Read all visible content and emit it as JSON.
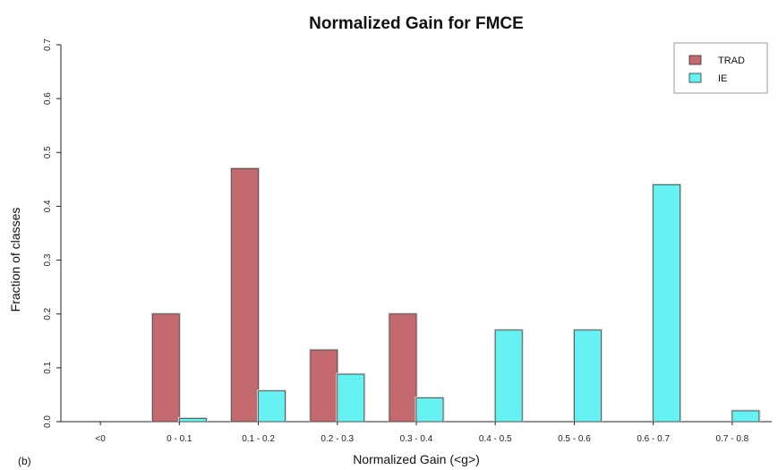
{
  "chart_data": {
    "type": "bar",
    "title": "Normalized Gain for FMCE",
    "xlabel": "Normalized Gain (<g>)",
    "ylabel": "Fraction of classes",
    "panel_label": "(b)",
    "categories": [
      "<0",
      "0 - 0.1",
      "0.1 - 0.2",
      "0.2 - 0.3",
      "0.3 - 0.4",
      "0.4 - 0.5",
      "0.5 - 0.6",
      "0.6 - 0.7",
      "0.7 - 0.8"
    ],
    "series": [
      {
        "name": "TRAD",
        "color": "#c46a6e",
        "values": [
          0,
          0.2,
          0.47,
          0.133,
          0.2,
          0,
          0,
          0,
          0
        ]
      },
      {
        "name": "IE",
        "color": "#66f2f2",
        "values": [
          0,
          0.006,
          0.057,
          0.088,
          0.044,
          0.17,
          0.17,
          0.44,
          0.02
        ]
      }
    ],
    "ylim": [
      0,
      0.7
    ],
    "yticks": [
      "0.0",
      "0.1",
      "0.2",
      "0.3",
      "0.4",
      "0.5",
      "0.6",
      "0.7"
    ],
    "legend_position": "top-right",
    "grid": false
  }
}
